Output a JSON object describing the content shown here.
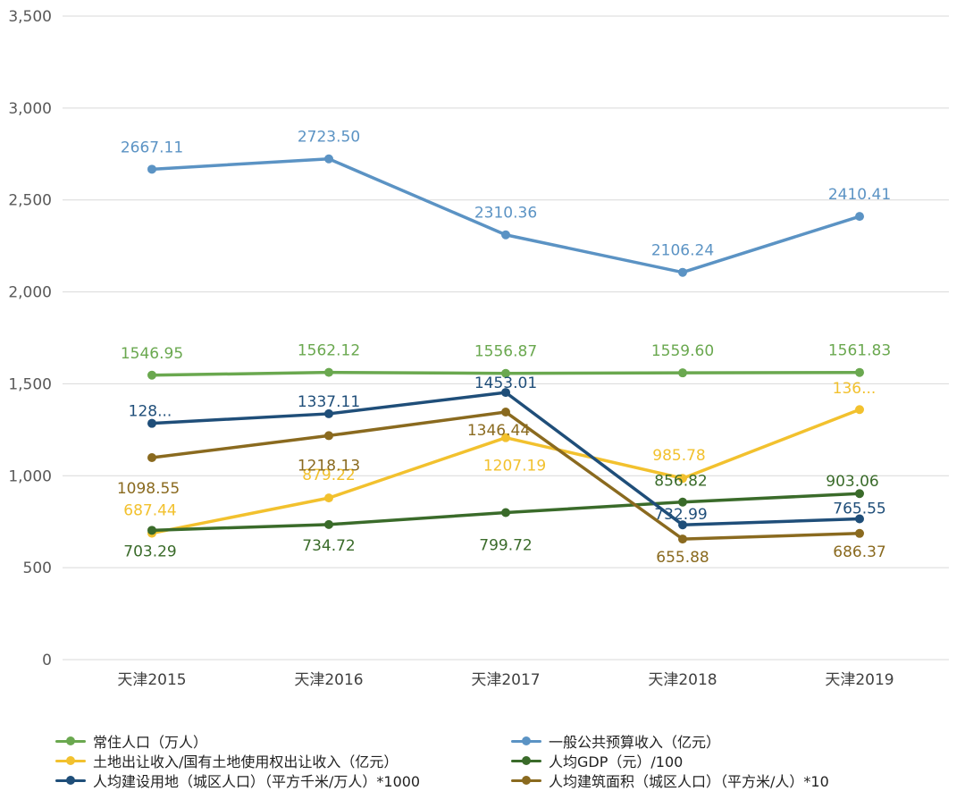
{
  "chart_data": {
    "type": "line",
    "categories": [
      "天津2015",
      "天津2016",
      "天津2017",
      "天津2018",
      "天津2019"
    ],
    "ylim": [
      0,
      3500
    ],
    "yticks": [
      0,
      500,
      1000,
      1500,
      2000,
      2500,
      3000,
      3500
    ],
    "ytick_labels": [
      "0",
      "500",
      "1,000",
      "1,500",
      "2,000",
      "2,500",
      "3,000",
      "3,500"
    ],
    "grid": true,
    "legend_position": "bottom",
    "series": [
      {
        "name": "常住人口（万人）",
        "color": "#6aa84f",
        "values": [
          1546.95,
          1562.12,
          1556.87,
          1559.6,
          1561.83
        ],
        "labels": [
          "1546.95",
          "1562.12",
          "1556.87",
          "1559.60",
          "1561.83"
        ]
      },
      {
        "name": "一般公共预算收入（亿元）",
        "color": "#5b93c4",
        "values": [
          2667.11,
          2723.5,
          2310.36,
          2106.24,
          2410.41
        ],
        "labels": [
          "2667.11",
          "2723.50",
          "2310.36",
          "2106.24",
          "2410.41"
        ]
      },
      {
        "name": "土地出让收入/国有土地使用权出让收入（亿元）",
        "color": "#f2c12e",
        "values": [
          687.44,
          879.22,
          1207.19,
          985.78,
          1360
        ],
        "labels": [
          "687.44",
          "879.22",
          "1207.19",
          "985.78",
          "136..."
        ]
      },
      {
        "name": "人均GDP（元）/100",
        "color": "#3a6b2a",
        "values": [
          703.29,
          734.72,
          799.72,
          856.82,
          903.06
        ],
        "labels": [
          "703.29",
          "734.72",
          "799.72",
          "856.82",
          "903.06"
        ]
      },
      {
        "name": "人均建设用地（城区人口）（平方千米/万人）*1000",
        "color": "#1f4e79",
        "values": [
          1285,
          1337.11,
          1453.01,
          732.99,
          765.55
        ],
        "labels": [
          "128...",
          "1337.11",
          "1453.01",
          "732.99",
          "765.55"
        ]
      },
      {
        "name": "人均建筑面积（城区人口）（平方米/人）*10",
        "color": "#8a6a1f",
        "values": [
          1098.55,
          1218.13,
          1346.44,
          655.88,
          686.37
        ],
        "labels": [
          "1098.55",
          "1218.13",
          "1346.44",
          "655.88",
          "686.37"
        ]
      }
    ]
  }
}
